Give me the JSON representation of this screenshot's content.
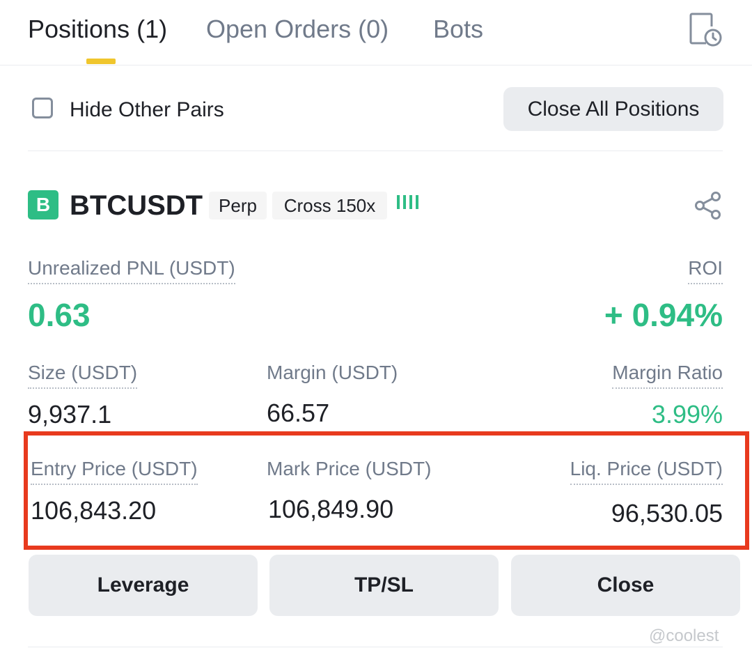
{
  "tabs": [
    {
      "label": "Positions (1)",
      "active": true
    },
    {
      "label": "Open Orders (0)",
      "active": false
    },
    {
      "label": "Bots",
      "active": false
    }
  ],
  "icons": {
    "history": "document-clock-icon",
    "share": "share-icon",
    "checkbox": "checkbox-unchecked"
  },
  "filters": {
    "hide_other_pairs_label": "Hide Other Pairs",
    "hide_other_pairs_checked": false,
    "close_all_label": "Close All Positions"
  },
  "position": {
    "badge_letter": "B",
    "symbol": "BTCUSDT",
    "type_tag": "Perp",
    "margin_mode_tag": "Cross 150x",
    "risk_indicator": "!!!!",
    "unrealized_pnl_label": "Unrealized PNL (USDT)",
    "unrealized_pnl": "0.63",
    "roi_label": "ROI",
    "roi": "+ 0.94%",
    "size_label": "Size (USDT)",
    "size": "9,937.1",
    "margin_label": "Margin (USDT)",
    "margin": "66.57",
    "margin_ratio_label": "Margin Ratio",
    "margin_ratio": "3.99%",
    "entry_price_label": "Entry Price (USDT)",
    "entry_price": "106,843.20",
    "mark_price_label": "Mark Price (USDT)",
    "mark_price": "106,849.90",
    "liq_price_label": "Liq. Price (USDT)",
    "liq_price": "96,530.05"
  },
  "actions": {
    "leverage": "Leverage",
    "tpsl": "TP/SL",
    "close": "Close"
  },
  "watermark": "@coolest",
  "colors": {
    "accent_yellow": "#f0c62d",
    "profit_green": "#2ebd85",
    "highlight_red": "#e83a1e",
    "button_gray": "#eaecef"
  }
}
